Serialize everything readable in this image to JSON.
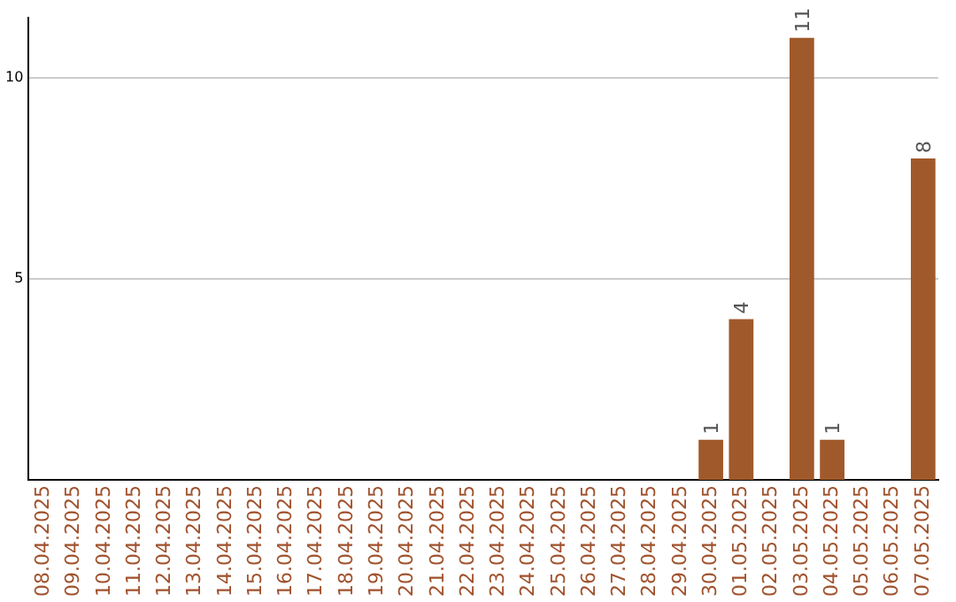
{
  "chart_data": {
    "type": "bar",
    "categories": [
      "08.04.2025",
      "09.04.2025",
      "10.04.2025",
      "11.04.2025",
      "12.04.2025",
      "13.04.2025",
      "14.04.2025",
      "15.04.2025",
      "16.04.2025",
      "17.04.2025",
      "18.04.2025",
      "19.04.2025",
      "20.04.2025",
      "21.04.2025",
      "22.04.2025",
      "23.04.2025",
      "24.04.2025",
      "25.04.2025",
      "26.04.2025",
      "27.04.2025",
      "28.04.2025",
      "29.04.2025",
      "30.04.2025",
      "01.05.2025",
      "02.05.2025",
      "03.05.2025",
      "04.05.2025",
      "05.05.2025",
      "06.05.2025",
      "07.05.2025"
    ],
    "values": [
      0,
      0,
      0,
      0,
      0,
      0,
      0,
      0,
      0,
      0,
      0,
      0,
      0,
      0,
      0,
      0,
      0,
      0,
      0,
      0,
      0,
      0,
      1,
      4,
      0,
      11,
      1,
      0,
      0,
      8
    ],
    "value_labels": [
      null,
      null,
      null,
      null,
      null,
      null,
      null,
      null,
      null,
      null,
      null,
      null,
      null,
      null,
      null,
      null,
      null,
      null,
      null,
      null,
      null,
      null,
      "1",
      "4",
      null,
      "11",
      "1",
      null,
      null,
      "8"
    ],
    "color": "#a0592a",
    "ylim": [
      0,
      11.5
    ],
    "yticks": [
      5,
      10
    ],
    "grid": "y",
    "legend": false
  }
}
